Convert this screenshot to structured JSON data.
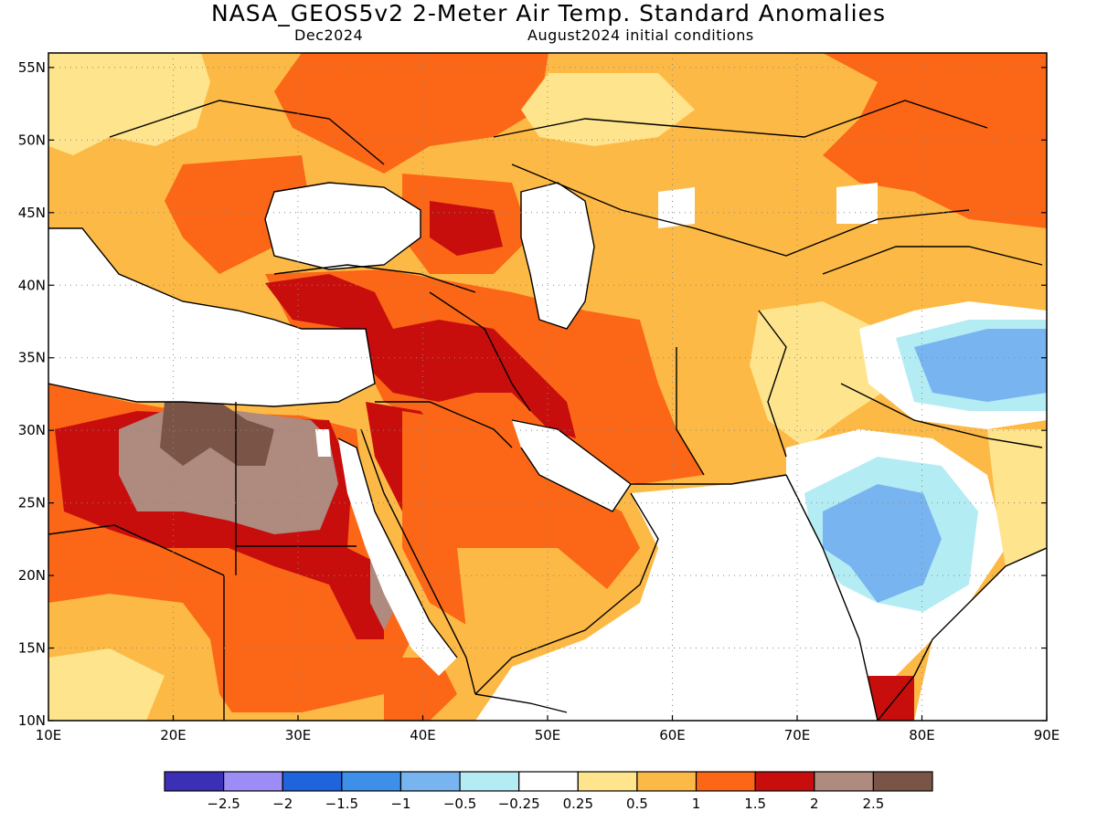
{
  "title": "NASA_GEOS5v2 2-Meter Air Temp. Standard Anomalies",
  "subtitle_left": "Dec2024",
  "subtitle_right": "August2024 initial conditions",
  "map": {
    "lon_range": [
      10,
      90
    ],
    "lat_range": [
      10,
      56
    ],
    "x_ticks": [
      "10E",
      "20E",
      "30E",
      "40E",
      "50E",
      "60E",
      "70E",
      "80E",
      "90E"
    ],
    "y_ticks": [
      "10N",
      "15N",
      "20N",
      "25N",
      "30N",
      "35N",
      "40N",
      "45N",
      "50N",
      "55N"
    ],
    "gridlines": "dotted"
  },
  "colorbar": {
    "colors": [
      "#3b2fb5",
      "#9c8cf5",
      "#1f63dd",
      "#3d8fe8",
      "#78b5f0",
      "#b4ecf4",
      "#ffffff",
      "#fee48c",
      "#fdb945",
      "#fb6716",
      "#c80d0d",
      "#af8a7e",
      "#7a5446"
    ],
    "labels": [
      "-2.5",
      "-2",
      "-1.5",
      "-1",
      "-0.5",
      "-0.25",
      "0.25",
      "0.5",
      "1",
      "1.5",
      "2",
      "2.5"
    ]
  }
}
